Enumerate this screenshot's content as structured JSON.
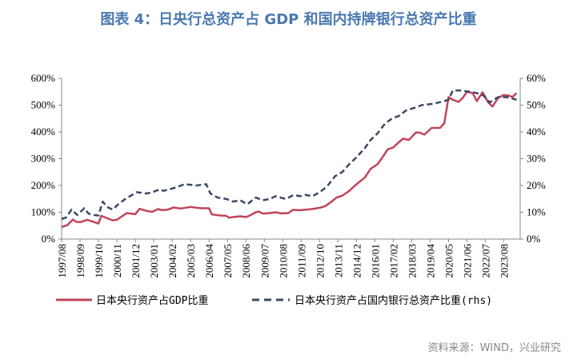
{
  "title": "图表 4：日央行总资产占 GDP 和国内持牌银行总资产比重",
  "source": "资料来源：WIND，兴业研究",
  "chart_data": {
    "type": "line",
    "title": "图表 4：日央行总资产占 GDP 和国内持牌银行总资产比重",
    "x_tick_labels": [
      "1997/08",
      "1998/09",
      "1999/10",
      "2000/11",
      "2001/12",
      "2003/01",
      "2004/02",
      "2005/03",
      "2006/04",
      "2007/05",
      "2008/06",
      "2009/07",
      "2010/08",
      "2011/09",
      "2012/10",
      "2013/11",
      "2014/12",
      "2016/01",
      "2017/02",
      "2018/03",
      "2019/04",
      "2020/05",
      "2021/06",
      "2022/07",
      "2023/08"
    ],
    "y_left": {
      "ylim": [
        0,
        600
      ],
      "ticks": [
        "0%",
        "100%",
        "200%",
        "300%",
        "400%",
        "500%",
        "600%"
      ]
    },
    "y_right": {
      "ylim": [
        0,
        60
      ],
      "ticks": [
        "0%",
        "10%",
        "20%",
        "30%",
        "40%",
        "50%",
        "60%"
      ]
    },
    "grid": false,
    "legend_position": "bottom",
    "series": [
      {
        "name": "日本央行资产占GDP比重",
        "axis": "left",
        "color": "#c0455a",
        "style": "solid",
        "points": [
          [
            "1997/08",
            45
          ],
          [
            "1997/12",
            52
          ],
          [
            "1998/04",
            73
          ],
          [
            "1998/06",
            65
          ],
          [
            "1998/09",
            63
          ],
          [
            "1999/02",
            72
          ],
          [
            "1999/06",
            65
          ],
          [
            "1999/10",
            58
          ],
          [
            "1999/12",
            87
          ],
          [
            "2000/04",
            78
          ],
          [
            "2000/08",
            70
          ],
          [
            "2000/11",
            72
          ],
          [
            "2001/04",
            90
          ],
          [
            "2001/06",
            97
          ],
          [
            "2001/12",
            93
          ],
          [
            "2002/03",
            113
          ],
          [
            "2002/08",
            105
          ],
          [
            "2002/12",
            102
          ],
          [
            "2003/04",
            112
          ],
          [
            "2003/07",
            108
          ],
          [
            "2003/11",
            110
          ],
          [
            "2004/03",
            118
          ],
          [
            "2004/08",
            114
          ],
          [
            "2005/03",
            120
          ],
          [
            "2005/07",
            117
          ],
          [
            "2005/11",
            115
          ],
          [
            "2006/04",
            115
          ],
          [
            "2006/06",
            92
          ],
          [
            "2006/12",
            88
          ],
          [
            "2007/04",
            87
          ],
          [
            "2007/06",
            80
          ],
          [
            "2007/10",
            83
          ],
          [
            "2008/02",
            85
          ],
          [
            "2008/06",
            82
          ],
          [
            "2008/08",
            86
          ],
          [
            "2009/01",
            100
          ],
          [
            "2009/03",
            103
          ],
          [
            "2009/06",
            95
          ],
          [
            "2009/11",
            97
          ],
          [
            "2010/03",
            100
          ],
          [
            "2010/07",
            96
          ],
          [
            "2010/12",
            97
          ],
          [
            "2011/03",
            109
          ],
          [
            "2011/08",
            108
          ],
          [
            "2012/01",
            110
          ],
          [
            "2012/06",
            113
          ],
          [
            "2012/11",
            118
          ],
          [
            "2013/02",
            123
          ],
          [
            "2013/06",
            138
          ],
          [
            "2013/10",
            155
          ],
          [
            "2014/02",
            162
          ],
          [
            "2014/07",
            180
          ],
          [
            "2014/11",
            200
          ],
          [
            "2015/06",
            230
          ],
          [
            "2015/10",
            262
          ],
          [
            "2016/03",
            280
          ],
          [
            "2016/07",
            310
          ],
          [
            "2016/10",
            335
          ],
          [
            "2017/02",
            342
          ],
          [
            "2017/06",
            362
          ],
          [
            "2017/09",
            375
          ],
          [
            "2018/01",
            370
          ],
          [
            "2018/06",
            398
          ],
          [
            "2018/09",
            397
          ],
          [
            "2018/12",
            390
          ],
          [
            "2019/05",
            415
          ],
          [
            "2019/11",
            415
          ],
          [
            "2020/02",
            432
          ],
          [
            "2020/05",
            530
          ],
          [
            "2020/08",
            520
          ],
          [
            "2020/12",
            512
          ],
          [
            "2021/03",
            527
          ],
          [
            "2021/06",
            550
          ],
          [
            "2021/10",
            545
          ],
          [
            "2022/01",
            515
          ],
          [
            "2022/05",
            548
          ],
          [
            "2022/09",
            510
          ],
          [
            "2022/12",
            495
          ],
          [
            "2023/04",
            527
          ],
          [
            "2023/08",
            538
          ],
          [
            "2023/12",
            535
          ],
          [
            "2024/02",
            530
          ],
          [
            "2024/05",
            545
          ]
        ]
      },
      {
        "name": "日本央行资产占国内银行总资产比重(rhs)",
        "axis": "right",
        "color": "#3d4a63",
        "style": "dashed",
        "points": [
          [
            "1997/08",
            7.5
          ],
          [
            "1997/11",
            8
          ],
          [
            "1998/03",
            11
          ],
          [
            "1998/07",
            9
          ],
          [
            "1998/12",
            11.5
          ],
          [
            "1999/03",
            9.5
          ],
          [
            "1999/07",
            9
          ],
          [
            "1999/10",
            8.8
          ],
          [
            "2000/01",
            14
          ],
          [
            "2000/04",
            12
          ],
          [
            "2000/08",
            11
          ],
          [
            "2000/12",
            13
          ],
          [
            "2001/05",
            15
          ],
          [
            "2002/01",
            17.5
          ],
          [
            "2002/08",
            17
          ],
          [
            "2002/12",
            17.5
          ],
          [
            "2003/05",
            18.5
          ],
          [
            "2003/08",
            18
          ],
          [
            "2004/03",
            19
          ],
          [
            "2004/11",
            20.5
          ],
          [
            "2005/07",
            20
          ],
          [
            "2006/02",
            20.5
          ],
          [
            "2006/05",
            17
          ],
          [
            "2006/10",
            15.5
          ],
          [
            "2007/04",
            15
          ],
          [
            "2007/09",
            14
          ],
          [
            "2008/02",
            14.5
          ],
          [
            "2008/07",
            13
          ],
          [
            "2009/01",
            15.5
          ],
          [
            "2009/06",
            14.5
          ],
          [
            "2009/11",
            15
          ],
          [
            "2010/03",
            16
          ],
          [
            "2010/10",
            15
          ],
          [
            "2011/04",
            16.5
          ],
          [
            "2011/08",
            16
          ],
          [
            "2011/12",
            16.5
          ],
          [
            "2012/05",
            16
          ],
          [
            "2012/10",
            17.5
          ],
          [
            "2013/03",
            19.5
          ],
          [
            "2013/09",
            23.5
          ],
          [
            "2014/02",
            25
          ],
          [
            "2014/07",
            28
          ],
          [
            "2014/12",
            30.5
          ],
          [
            "2015/06",
            34
          ],
          [
            "2015/10",
            37
          ],
          [
            "2016/03",
            39.5
          ],
          [
            "2016/08",
            43
          ],
          [
            "2017/01",
            45
          ],
          [
            "2017/06",
            46
          ],
          [
            "2017/11",
            48
          ],
          [
            "2018/05",
            49
          ],
          [
            "2018/10",
            50
          ],
          [
            "2019/06",
            50.5
          ],
          [
            "2020/02",
            51.5
          ],
          [
            "2020/05",
            52
          ],
          [
            "2020/08",
            55.5
          ],
          [
            "2021/01",
            55.5
          ],
          [
            "2021/08",
            55
          ],
          [
            "2022/01",
            54.5
          ],
          [
            "2022/06",
            53.5
          ],
          [
            "2022/10",
            51
          ],
          [
            "2023/04",
            53
          ],
          [
            "2023/10",
            53
          ],
          [
            "2024/02",
            52.5
          ],
          [
            "2024/05",
            52
          ]
        ]
      }
    ]
  }
}
